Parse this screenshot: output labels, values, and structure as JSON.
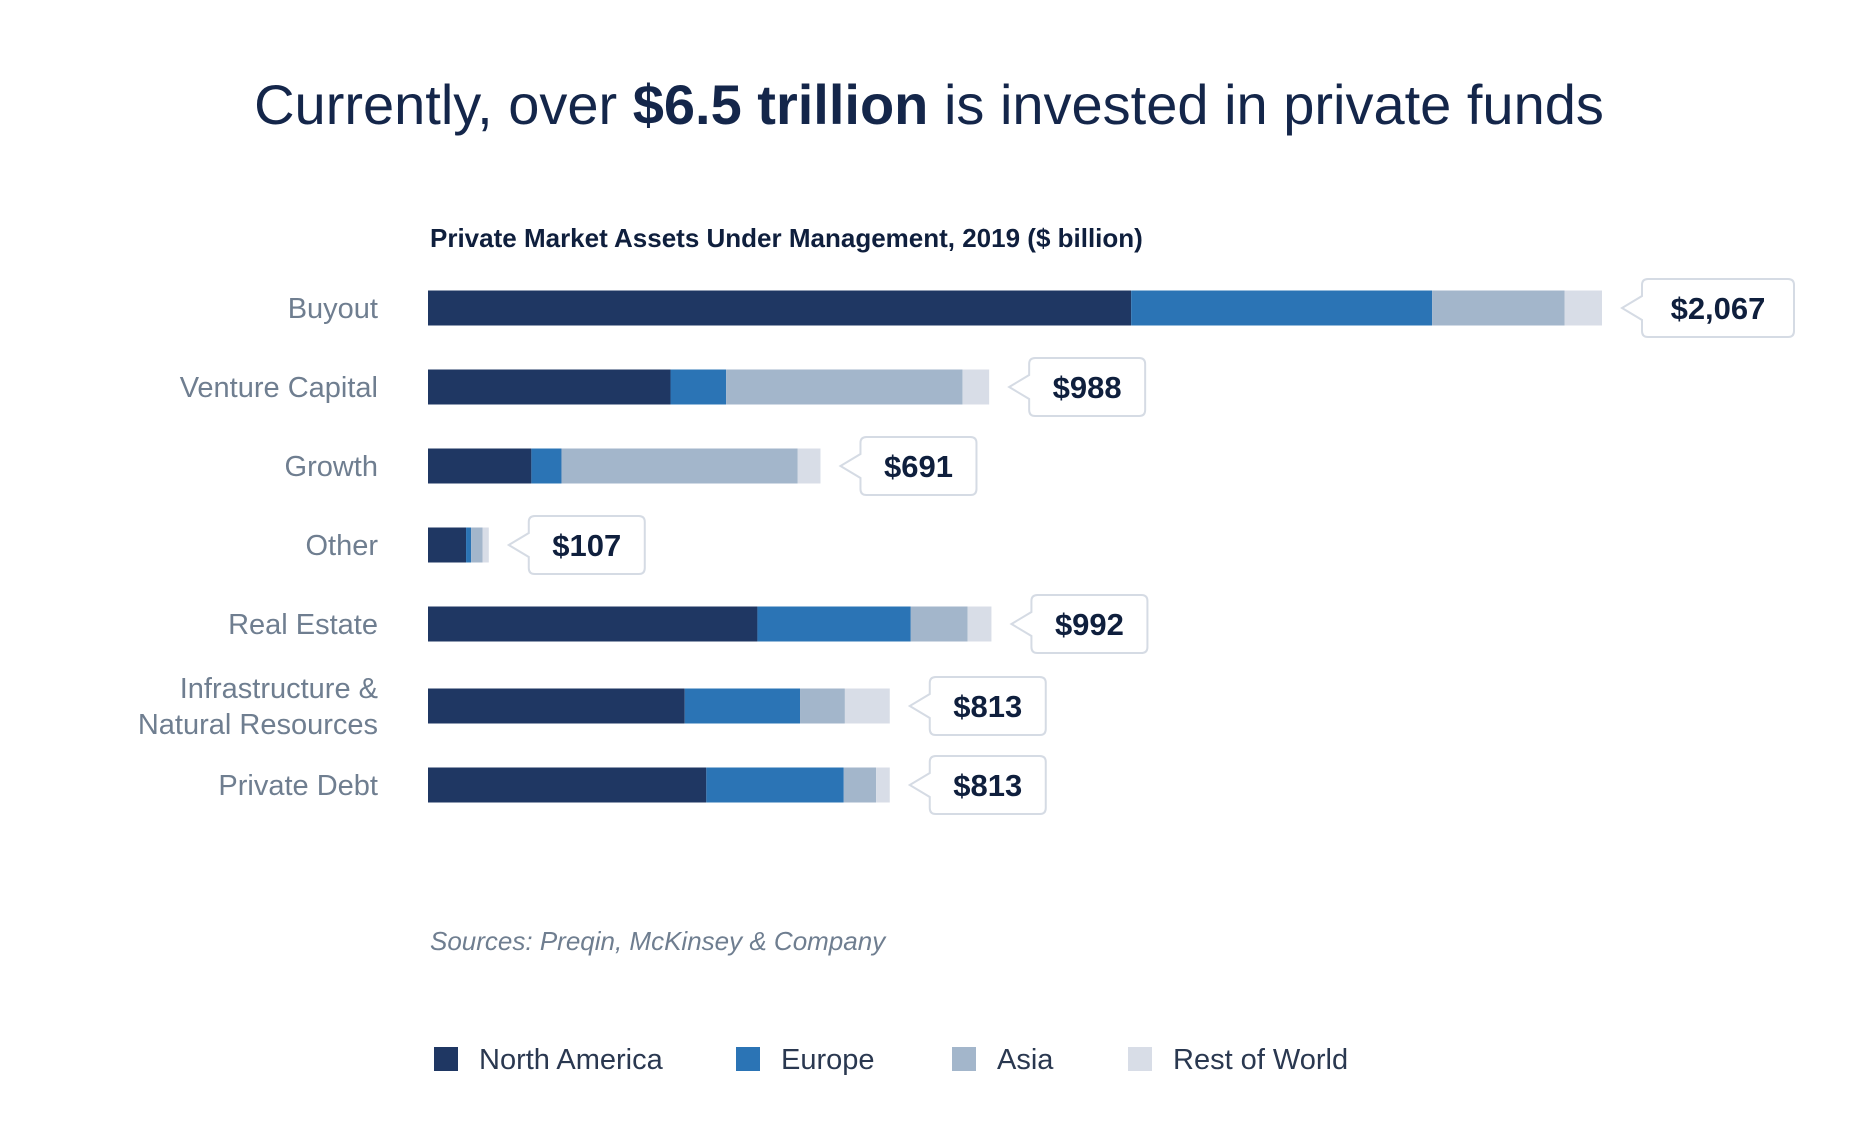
{
  "headline": {
    "prefix": "Currently, over ",
    "emphasis": "$6.5 trillion",
    "suffix": " is invested in private funds"
  },
  "chart_data": {
    "type": "bar",
    "orientation": "horizontal",
    "stacked": true,
    "title": "Private Market Assets Under Management, 2019 ($ billion)",
    "categories": [
      "Buyout",
      "Venture Capital",
      "Growth",
      "Other",
      "Real Estate",
      "Infrastructure &\nNatural Resources",
      "Private Debt"
    ],
    "totals": [
      2067,
      988,
      691,
      107,
      992,
      813,
      813
    ],
    "total_labels": [
      "$2,067",
      "$988",
      "$691",
      "$107",
      "$992",
      "$813",
      "$813"
    ],
    "series": [
      {
        "name": "North America",
        "color": "#1f3763",
        "values": [
          1238,
          427,
          182,
          67,
          580,
          452,
          490
        ]
      },
      {
        "name": "Europe",
        "color": "#2b74b5",
        "values": [
          530,
          98,
          53,
          9,
          270,
          203,
          242
        ]
      },
      {
        "name": "Asia",
        "color": "#a3b6cb",
        "values": [
          233,
          416,
          416,
          20,
          100,
          79,
          57
        ]
      },
      {
        "name": "Rest of World",
        "color": "#d8dde7",
        "values": [
          66,
          47,
          40,
          11,
          42,
          79,
          24
        ]
      }
    ],
    "grid": false,
    "legend_position": "bottom",
    "source": "Sources: Preqin, McKinsey & Company"
  }
}
